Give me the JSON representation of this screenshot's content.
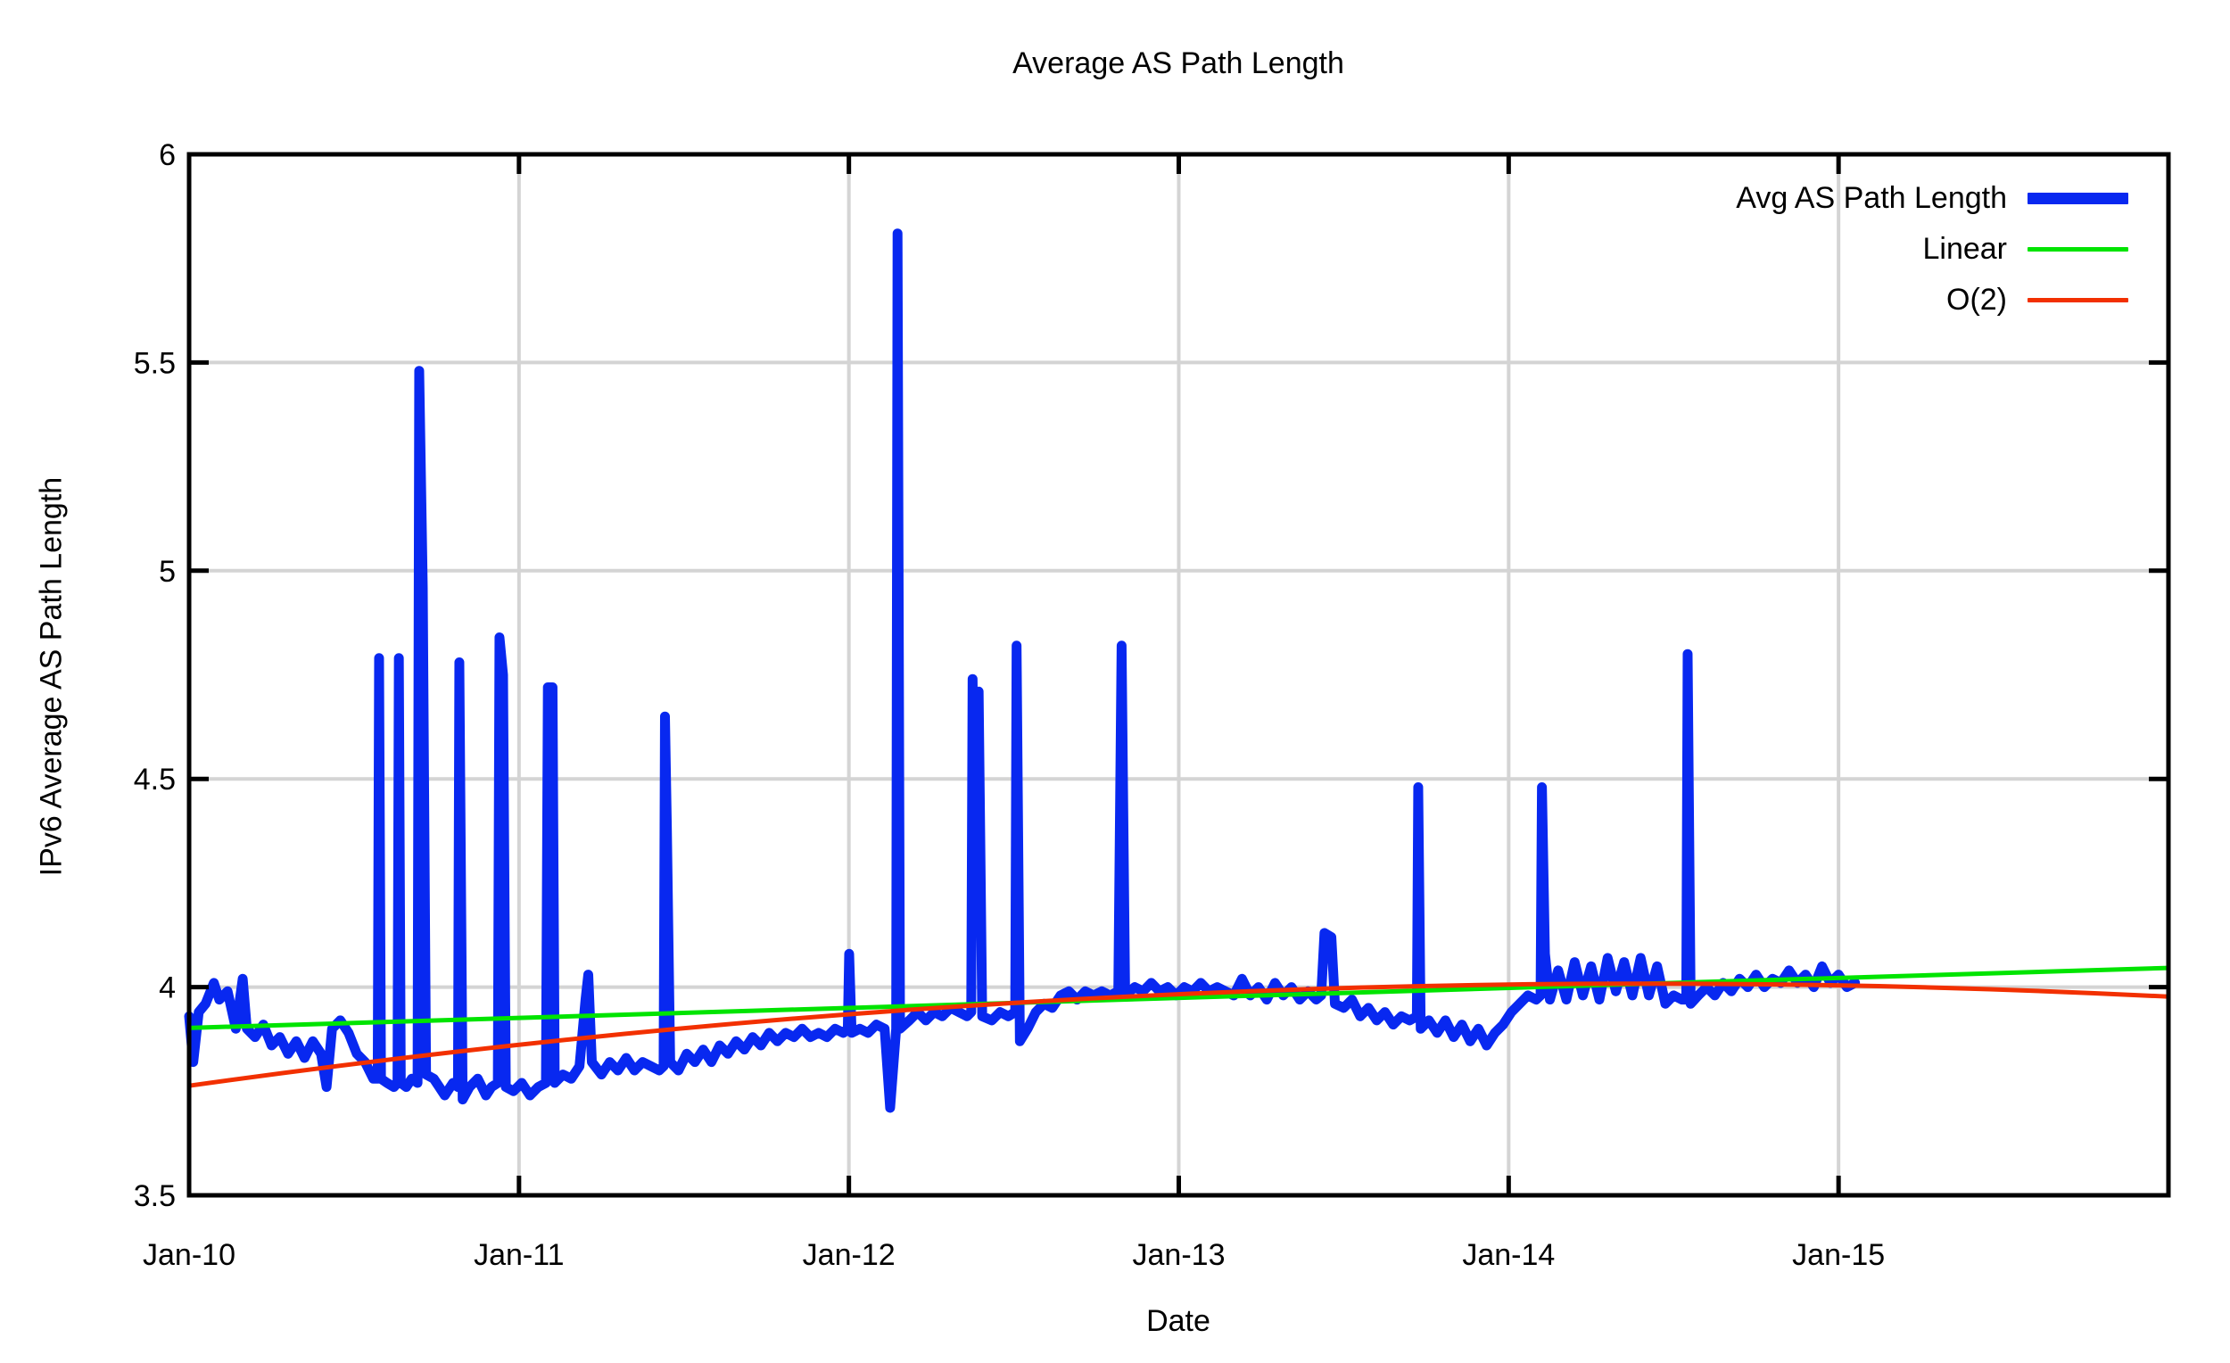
{
  "title": "Average AS Path Length",
  "axes": {
    "x_label": "Date",
    "y_label": "IPv6 Average AS Path Length"
  },
  "legend": {
    "items": [
      {
        "label": "Avg AS Path Length",
        "color": "#0828f0",
        "thickness": 13
      },
      {
        "label": "Linear",
        "color": "#00e400",
        "thickness": 5
      },
      {
        "label": "O(2)",
        "color": "#f23000",
        "thickness": 5
      }
    ]
  },
  "colors": {
    "frame": "#000000",
    "grid": "#d4d4d4",
    "background": "#ffffff",
    "avg_series": "#0828f0",
    "linear_series": "#00e400",
    "o2_series": "#f23000"
  },
  "chart_data": {
    "type": "line",
    "title": "Average AS Path Length",
    "xlabel": "Date",
    "ylabel": "IPv6 Average AS Path Length",
    "x_unit": "months since Jan-2010",
    "xlim": [
      0,
      72
    ],
    "ylim": [
      3.5,
      6
    ],
    "grid": true,
    "legend_position": "top-right-inside",
    "x_ticks": [
      {
        "m": 0,
        "label": "Jan-10"
      },
      {
        "m": 12,
        "label": "Jan-11"
      },
      {
        "m": 24,
        "label": "Jan-12"
      },
      {
        "m": 36,
        "label": "Jan-13"
      },
      {
        "m": 48,
        "label": "Jan-14"
      },
      {
        "m": 60,
        "label": "Jan-15"
      }
    ],
    "y_ticks": [
      {
        "v": 3.5,
        "label": "3.5"
      },
      {
        "v": 4,
        "label": "4"
      },
      {
        "v": 4.5,
        "label": "4.5"
      },
      {
        "v": 5,
        "label": "5"
      },
      {
        "v": 5.5,
        "label": "5.5"
      },
      {
        "v": 6,
        "label": "6"
      }
    ],
    "notable_spikes": [
      {
        "date": "Jul-2010",
        "value": 4.79
      },
      {
        "date": "Aug-2010",
        "value": 4.79
      },
      {
        "date": "Sep-2010",
        "value": 5.48
      },
      {
        "date": "Sep-2010",
        "value": 4.96
      },
      {
        "date": "Oct-2010",
        "value": 4.78
      },
      {
        "date": "Dec-2010",
        "value": 4.84
      },
      {
        "date": "Feb-2011",
        "value": 4.72
      },
      {
        "date": "Jun-2011",
        "value": 4.65
      },
      {
        "date": "Jan-2012",
        "value": 4.08
      },
      {
        "date": "Feb-2012",
        "value": 5.81
      },
      {
        "date": "May-2012",
        "value": 4.74
      },
      {
        "date": "May-2012",
        "value": 4.71
      },
      {
        "date": "Jul-2012",
        "value": 4.82
      },
      {
        "date": "Nov-2012",
        "value": 4.82
      },
      {
        "date": "Jun-2013",
        "value": 4.13
      },
      {
        "date": "Sep-2013",
        "value": 4.48
      },
      {
        "date": "Feb-2014",
        "value": 4.48
      },
      {
        "date": "Jul-2014",
        "value": 4.8
      }
    ],
    "series": [
      {
        "name": "Avg AS Path Length",
        "style": "polyline",
        "color": "#0828f0",
        "width": 11,
        "points": [
          [
            0,
            3.93
          ],
          [
            0.15,
            3.82
          ],
          [
            0.35,
            3.94
          ],
          [
            0.6,
            3.96
          ],
          [
            0.9,
            4.01
          ],
          [
            1.1,
            3.97
          ],
          [
            1.4,
            3.99
          ],
          [
            1.7,
            3.9
          ],
          [
            1.95,
            4.02
          ],
          [
            2.1,
            3.9
          ],
          [
            2.4,
            3.88
          ],
          [
            2.7,
            3.91
          ],
          [
            3,
            3.86
          ],
          [
            3.3,
            3.88
          ],
          [
            3.6,
            3.84
          ],
          [
            3.9,
            3.87
          ],
          [
            4.2,
            3.83
          ],
          [
            4.5,
            3.87
          ],
          [
            4.8,
            3.84
          ],
          [
            5,
            3.76
          ],
          [
            5.2,
            3.9
          ],
          [
            5.5,
            3.92
          ],
          [
            5.8,
            3.89
          ],
          [
            6.1,
            3.84
          ],
          [
            6.4,
            3.82
          ],
          [
            6.7,
            3.78
          ],
          [
            6.86,
            3.78
          ],
          [
            6.91,
            4.79
          ],
          [
            6.98,
            3.78
          ],
          [
            7.2,
            3.77
          ],
          [
            7.45,
            3.76
          ],
          [
            7.58,
            3.77
          ],
          [
            7.63,
            4.79
          ],
          [
            7.7,
            3.77
          ],
          [
            7.9,
            3.76
          ],
          [
            8.1,
            3.78
          ],
          [
            8.31,
            3.77
          ],
          [
            8.37,
            5.48
          ],
          [
            8.5,
            4.96
          ],
          [
            8.62,
            3.79
          ],
          [
            8.9,
            3.78
          ],
          [
            9.1,
            3.76
          ],
          [
            9.3,
            3.74
          ],
          [
            9.6,
            3.77
          ],
          [
            9.78,
            3.76
          ],
          [
            9.83,
            4.78
          ],
          [
            9.95,
            3.73
          ],
          [
            10.2,
            3.76
          ],
          [
            10.5,
            3.78
          ],
          [
            10.8,
            3.74
          ],
          [
            11,
            3.76
          ],
          [
            11.23,
            3.77
          ],
          [
            11.29,
            4.84
          ],
          [
            11.42,
            4.75
          ],
          [
            11.52,
            3.76
          ],
          [
            11.8,
            3.75
          ],
          [
            12.1,
            3.77
          ],
          [
            12.4,
            3.74
          ],
          [
            12.7,
            3.76
          ],
          [
            12.98,
            3.77
          ],
          [
            13.05,
            4.72
          ],
          [
            13.22,
            4.72
          ],
          [
            13.3,
            3.77
          ],
          [
            13.6,
            3.79
          ],
          [
            13.9,
            3.78
          ],
          [
            14.2,
            3.81
          ],
          [
            14.42,
            3.97
          ],
          [
            14.52,
            4.03
          ],
          [
            14.65,
            3.82
          ],
          [
            15,
            3.79
          ],
          [
            15.3,
            3.82
          ],
          [
            15.6,
            3.8
          ],
          [
            15.9,
            3.83
          ],
          [
            16.2,
            3.8
          ],
          [
            16.5,
            3.82
          ],
          [
            16.8,
            3.81
          ],
          [
            17.1,
            3.8
          ],
          [
            17.26,
            3.81
          ],
          [
            17.31,
            4.65
          ],
          [
            17.38,
            4.38
          ],
          [
            17.5,
            3.82
          ],
          [
            17.8,
            3.8
          ],
          [
            18.1,
            3.84
          ],
          [
            18.4,
            3.82
          ],
          [
            18.7,
            3.85
          ],
          [
            19,
            3.82
          ],
          [
            19.3,
            3.86
          ],
          [
            19.6,
            3.84
          ],
          [
            19.9,
            3.87
          ],
          [
            20.2,
            3.85
          ],
          [
            20.5,
            3.88
          ],
          [
            20.8,
            3.86
          ],
          [
            21.1,
            3.89
          ],
          [
            21.4,
            3.87
          ],
          [
            21.7,
            3.89
          ],
          [
            22,
            3.88
          ],
          [
            22.3,
            3.9
          ],
          [
            22.6,
            3.88
          ],
          [
            22.9,
            3.89
          ],
          [
            23.2,
            3.88
          ],
          [
            23.5,
            3.9
          ],
          [
            23.8,
            3.89
          ],
          [
            23.96,
            3.9
          ],
          [
            24.01,
            4.08
          ],
          [
            24.1,
            3.89
          ],
          [
            24.4,
            3.9
          ],
          [
            24.7,
            3.89
          ],
          [
            25,
            3.91
          ],
          [
            25.3,
            3.9
          ],
          [
            25.5,
            3.71
          ],
          [
            25.72,
            3.9
          ],
          [
            25.77,
            5.81
          ],
          [
            25.86,
            3.9
          ],
          [
            26.2,
            3.92
          ],
          [
            26.5,
            3.94
          ],
          [
            26.8,
            3.92
          ],
          [
            27.1,
            3.94
          ],
          [
            27.4,
            3.93
          ],
          [
            27.7,
            3.95
          ],
          [
            28,
            3.94
          ],
          [
            28.3,
            3.93
          ],
          [
            28.45,
            3.94
          ],
          [
            28.5,
            4.74
          ],
          [
            28.6,
            4.2
          ],
          [
            28.72,
            4.71
          ],
          [
            28.85,
            3.93
          ],
          [
            29.2,
            3.92
          ],
          [
            29.5,
            3.94
          ],
          [
            29.8,
            3.93
          ],
          [
            30.05,
            3.94
          ],
          [
            30.1,
            4.82
          ],
          [
            30.22,
            3.87
          ],
          [
            30.5,
            3.9
          ],
          [
            30.8,
            3.94
          ],
          [
            31.1,
            3.96
          ],
          [
            31.4,
            3.95
          ],
          [
            31.7,
            3.98
          ],
          [
            32,
            3.99
          ],
          [
            32.3,
            3.97
          ],
          [
            32.6,
            3.99
          ],
          [
            32.9,
            3.98
          ],
          [
            33.2,
            3.99
          ],
          [
            33.5,
            3.98
          ],
          [
            33.8,
            3.99
          ],
          [
            33.92,
            4.82
          ],
          [
            34.05,
            3.98
          ],
          [
            34.4,
            4
          ],
          [
            34.7,
            3.99
          ],
          [
            35,
            4.01
          ],
          [
            35.3,
            3.99
          ],
          [
            35.6,
            4
          ],
          [
            35.9,
            3.98
          ],
          [
            36.2,
            4
          ],
          [
            36.5,
            3.99
          ],
          [
            36.8,
            4.01
          ],
          [
            37.1,
            3.99
          ],
          [
            37.4,
            4
          ],
          [
            37.7,
            3.99
          ],
          [
            38,
            3.98
          ],
          [
            38.3,
            4.02
          ],
          [
            38.6,
            3.98
          ],
          [
            38.9,
            4
          ],
          [
            39.2,
            3.97
          ],
          [
            39.5,
            4.01
          ],
          [
            39.8,
            3.98
          ],
          [
            40.1,
            4
          ],
          [
            40.4,
            3.97
          ],
          [
            40.7,
            3.99
          ],
          [
            41,
            3.97
          ],
          [
            41.18,
            3.98
          ],
          [
            41.3,
            4.13
          ],
          [
            41.55,
            4.12
          ],
          [
            41.68,
            3.96
          ],
          [
            42,
            3.95
          ],
          [
            42.3,
            3.97
          ],
          [
            42.6,
            3.93
          ],
          [
            42.9,
            3.95
          ],
          [
            43.2,
            3.92
          ],
          [
            43.5,
            3.94
          ],
          [
            43.8,
            3.91
          ],
          [
            44.1,
            3.93
          ],
          [
            44.4,
            3.92
          ],
          [
            44.66,
            3.93
          ],
          [
            44.71,
            4.48
          ],
          [
            44.8,
            3.9
          ],
          [
            45.1,
            3.92
          ],
          [
            45.4,
            3.89
          ],
          [
            45.7,
            3.92
          ],
          [
            46,
            3.88
          ],
          [
            46.3,
            3.91
          ],
          [
            46.6,
            3.87
          ],
          [
            46.9,
            3.9
          ],
          [
            47.2,
            3.86
          ],
          [
            47.5,
            3.89
          ],
          [
            47.8,
            3.91
          ],
          [
            48.1,
            3.94
          ],
          [
            48.4,
            3.96
          ],
          [
            48.7,
            3.98
          ],
          [
            49,
            3.97
          ],
          [
            49.16,
            3.98
          ],
          [
            49.21,
            4.48
          ],
          [
            49.32,
            4.08
          ],
          [
            49.5,
            3.97
          ],
          [
            49.8,
            4.04
          ],
          [
            50.1,
            3.97
          ],
          [
            50.4,
            4.06
          ],
          [
            50.7,
            3.98
          ],
          [
            51,
            4.05
          ],
          [
            51.3,
            3.97
          ],
          [
            51.6,
            4.07
          ],
          [
            51.9,
            3.99
          ],
          [
            52.2,
            4.06
          ],
          [
            52.5,
            3.98
          ],
          [
            52.8,
            4.07
          ],
          [
            53.1,
            3.98
          ],
          [
            53.4,
            4.05
          ],
          [
            53.7,
            3.96
          ],
          [
            54,
            3.98
          ],
          [
            54.3,
            3.97
          ],
          [
            54.46,
            3.97
          ],
          [
            54.51,
            4.8
          ],
          [
            54.62,
            3.96
          ],
          [
            54.9,
            3.98
          ],
          [
            55.2,
            4
          ],
          [
            55.5,
            3.98
          ],
          [
            55.8,
            4.01
          ],
          [
            56.1,
            3.99
          ],
          [
            56.4,
            4.02
          ],
          [
            56.7,
            4
          ],
          [
            57,
            4.03
          ],
          [
            57.3,
            4
          ],
          [
            57.6,
            4.02
          ],
          [
            57.9,
            4.01
          ],
          [
            58.2,
            4.04
          ],
          [
            58.5,
            4.01
          ],
          [
            58.8,
            4.03
          ],
          [
            59.1,
            4
          ],
          [
            59.4,
            4.05
          ],
          [
            59.7,
            4.01
          ],
          [
            60,
            4.03
          ],
          [
            60.3,
            4
          ],
          [
            60.6,
            4.01
          ]
        ]
      },
      {
        "name": "Linear",
        "style": "line",
        "color": "#00e400",
        "width": 5,
        "points": [
          [
            0,
            3.902
          ],
          [
            72,
            4.046
          ]
        ]
      },
      {
        "name": "O(2)",
        "style": "quadratic-bezier",
        "color": "#f23000",
        "width": 5,
        "bezier": [
          [
            0,
            3.763
          ],
          [
            36,
            4.096
          ],
          [
            72,
            3.977
          ]
        ]
      }
    ]
  }
}
